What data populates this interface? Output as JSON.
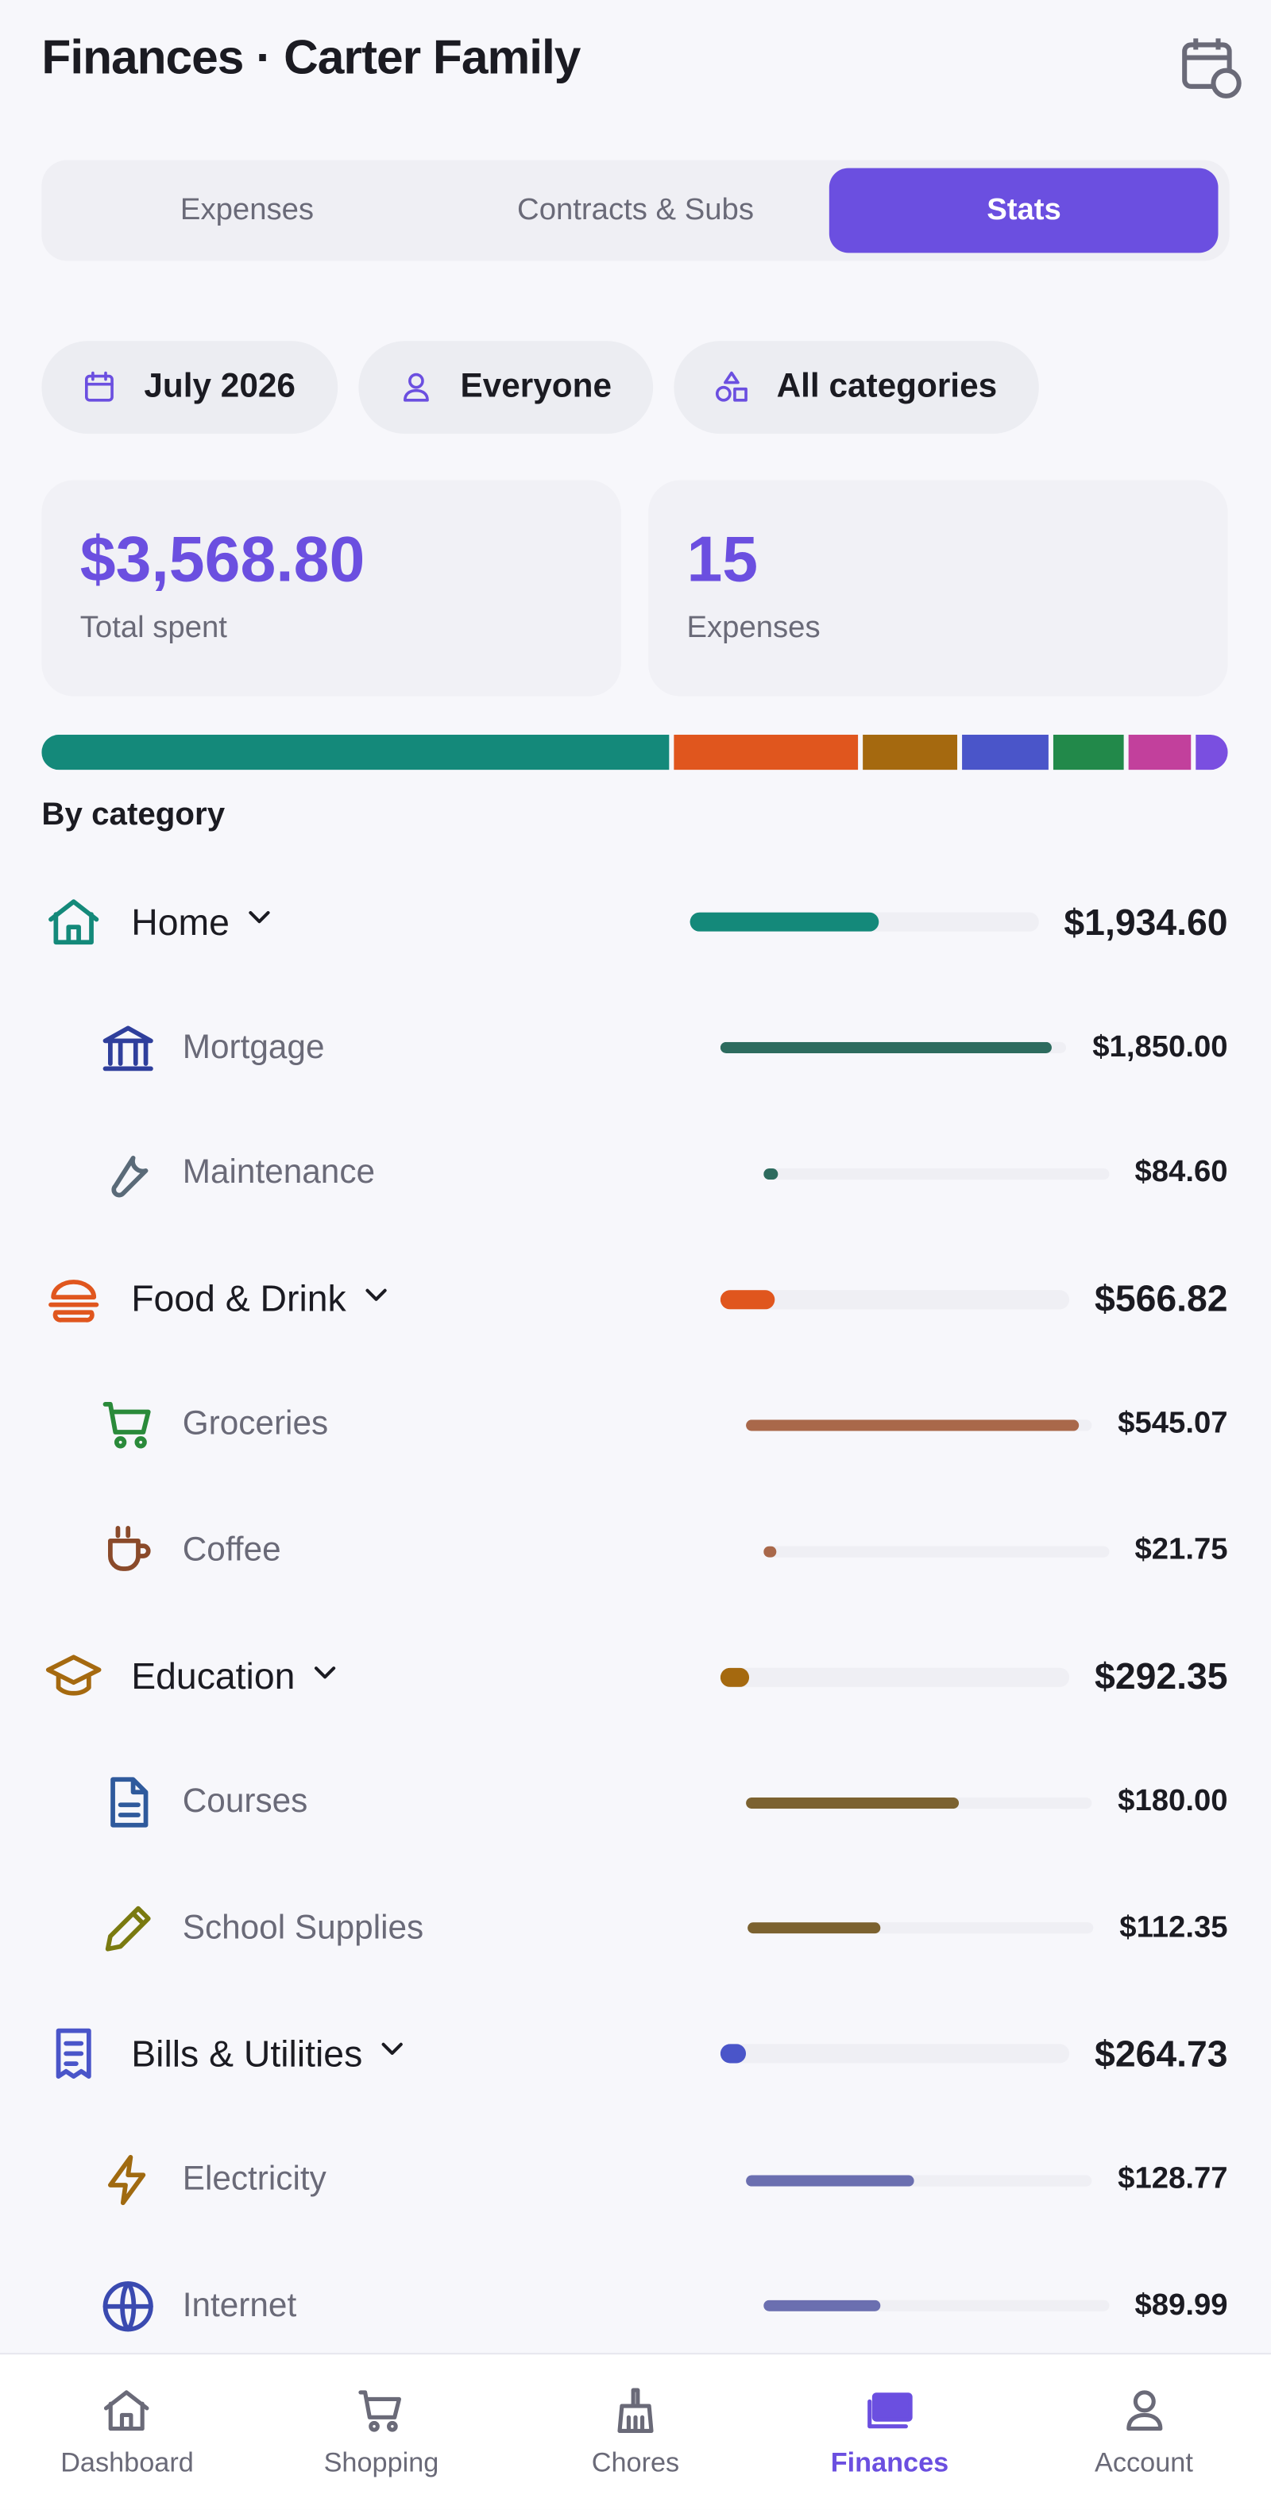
{
  "header": {
    "title": "Finances · Carter Family"
  },
  "tabs": [
    {
      "label": "Expenses",
      "active": false
    },
    {
      "label": "Contracts & Subs",
      "active": false
    },
    {
      "label": "Stats",
      "active": true
    }
  ],
  "filters": [
    "July 2026",
    "Everyone",
    "All categories"
  ],
  "summary": {
    "total_spent": 3568.8,
    "total_spent_label": "$3,568.80",
    "total_spent_caption": "Total spent",
    "expense_count": 15,
    "expense_count_caption": "Expenses"
  },
  "category_bar": {
    "other_values": [
      217,
      193,
      100
    ],
    "other_colors": [
      "#22894a",
      "#c2409c",
      "#7a4fe0"
    ]
  },
  "section_title": "By category",
  "categories": [
    {
      "name": "Home",
      "amount": 1934.6,
      "amount_label": "$1,934.60",
      "color": "#14897a",
      "subcategories": [
        {
          "name": "Mortgage",
          "amount": 1850.0,
          "amount_label": "$1,850.00",
          "color": "#2d6b5e"
        },
        {
          "name": "Maintenance",
          "amount": 84.6,
          "amount_label": "$84.60",
          "color": "#2d6b5e"
        }
      ]
    },
    {
      "name": "Food & Drink",
      "amount": 566.82,
      "amount_label": "$566.82",
      "color": "#e0561e",
      "subcategories": [
        {
          "name": "Groceries",
          "amount": 545.07,
          "amount_label": "$545.07",
          "color": "#a9684a"
        },
        {
          "name": "Coffee",
          "amount": 21.75,
          "amount_label": "$21.75",
          "color": "#a9684a"
        }
      ]
    },
    {
      "name": "Education",
      "amount": 292.35,
      "amount_label": "$292.35",
      "color": "#a5690f",
      "subcategories": [
        {
          "name": "Courses",
          "amount": 180.0,
          "amount_label": "$180.00",
          "color": "#7c6230"
        },
        {
          "name": "School Supplies",
          "amount": 112.35,
          "amount_label": "$112.35",
          "color": "#7c6230"
        }
      ]
    },
    {
      "name": "Bills & Utilities",
      "amount": 264.73,
      "amount_label": "$264.73",
      "color": "#4a55c9",
      "subcategories": [
        {
          "name": "Electricity",
          "amount": 128.77,
          "amount_label": "$128.77",
          "color": "#6b6fb0"
        },
        {
          "name": "Internet",
          "amount": 89.99,
          "amount_label": "$89.99",
          "color": "#6b6fb0"
        }
      ]
    }
  ],
  "nav": [
    {
      "label": "Dashboard",
      "active": false
    },
    {
      "label": "Shopping",
      "active": false
    },
    {
      "label": "Chores",
      "active": false
    },
    {
      "label": "Finances",
      "active": true
    },
    {
      "label": "Account",
      "active": false
    }
  ]
}
